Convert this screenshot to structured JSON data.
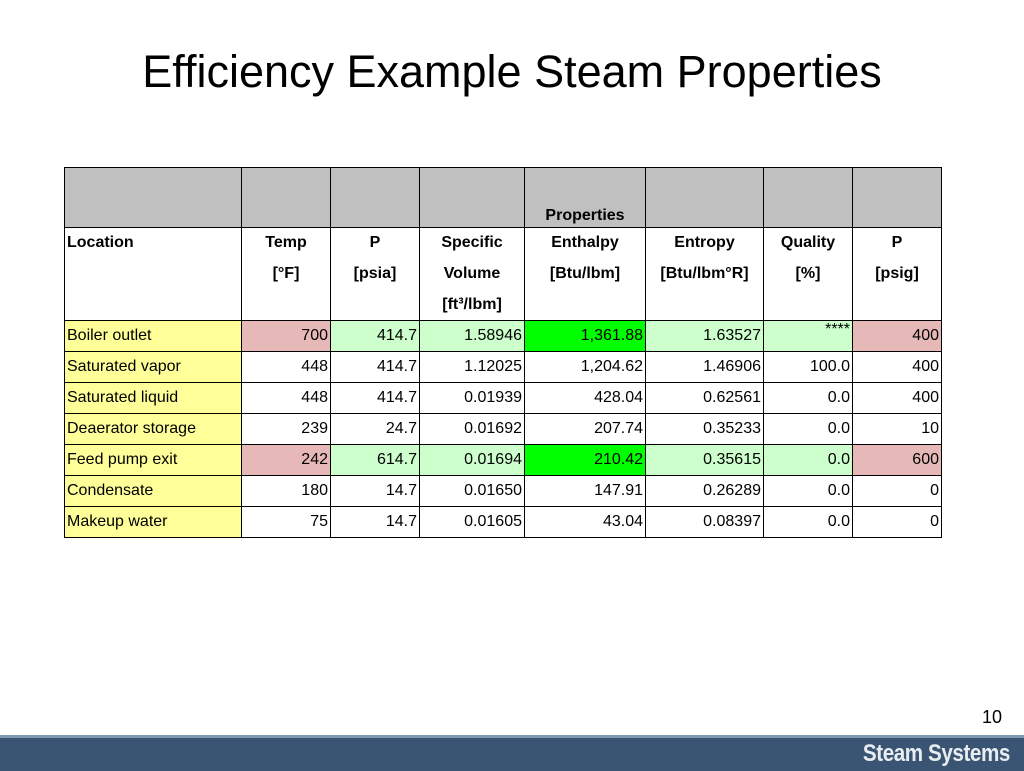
{
  "slide": {
    "title": "Efficiency Example Steam Properties",
    "page_number": "10",
    "footer_brand": "Steam Systems"
  },
  "table": {
    "group_label": "Properties",
    "headers": [
      [
        "Location",
        "",
        "",
        ""
      ],
      [
        "Temp",
        "[°F]",
        "",
        ""
      ],
      [
        "P",
        "[psia]",
        "",
        ""
      ],
      [
        "Specific",
        "Volume",
        "[ft³/lbm]",
        ""
      ],
      [
        "Enthalpy",
        "[Btu/lbm]",
        "",
        ""
      ],
      [
        "Entropy",
        "[Btu/lbm°R]",
        "",
        ""
      ],
      [
        "Quality",
        "[%]",
        "",
        ""
      ],
      [
        "P",
        "[psig]",
        "",
        ""
      ]
    ],
    "rows": [
      [
        "Boiler outlet",
        "700",
        "414.7",
        "1.58946",
        "1,361.88",
        "1.63527",
        "****",
        "400"
      ],
      [
        "Saturated vapor",
        "448",
        "414.7",
        "1.12025",
        "1,204.62",
        "1.46906",
        "100.0",
        "400"
      ],
      [
        "Saturated liquid",
        "448",
        "414.7",
        "0.01939",
        "428.04",
        "0.62561",
        "0.0",
        "400"
      ],
      [
        "Deaerator storage",
        "239",
        "24.7",
        "0.01692",
        "207.74",
        "0.35233",
        "0.0",
        "10"
      ],
      [
        "Feed pump exit",
        "242",
        "614.7",
        "0.01694",
        "210.42",
        "0.35615",
        "0.0",
        "600"
      ],
      [
        "Condensate",
        "180",
        "14.7",
        "0.01650",
        "147.91",
        "0.26289",
        "0.0",
        "0"
      ],
      [
        "Makeup water",
        "75",
        "14.7",
        "0.01605",
        "43.04",
        "0.08397",
        "0.0",
        "0"
      ]
    ],
    "highlight_colors": {
      "location": "#ffff99",
      "pink": "#e6b9b8",
      "light_green": "#ccffcc",
      "bright_green": "#00ff00"
    }
  }
}
